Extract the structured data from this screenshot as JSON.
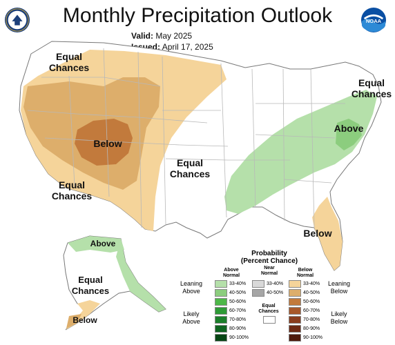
{
  "header": {
    "title": "Monthly Precipitation Outlook",
    "valid_label": "Valid:",
    "valid_value": "May 2025",
    "issued_label": "Issued:",
    "issued_value": "April 17, 2025",
    "left_logo": "commerce-seal-icon",
    "right_logo": "noaa-logo-icon"
  },
  "map_labels": {
    "ec_northwest": [
      "Equal",
      "Chances"
    ],
    "ec_northeast": [
      "Equal",
      "Chances"
    ],
    "ec_central": [
      "Equal",
      "Chances"
    ],
    "ec_southwest": [
      "Equal",
      "Chances"
    ],
    "ec_alaska": [
      "Equal",
      "Chances"
    ],
    "below_west": "Below",
    "above_east": "Above",
    "below_florida": "Below",
    "above_alaska": "Above",
    "below_alaska": "Below"
  },
  "legend": {
    "title_line1": "Probability",
    "title_line2": "(Percent Chance)",
    "col_above": [
      "Above",
      "Normal"
    ],
    "col_near": [
      "Near",
      "Normal"
    ],
    "col_below": [
      "Below",
      "Normal"
    ],
    "leaning_above": [
      "Leaning",
      "Above"
    ],
    "leaning_below": [
      "Leaning",
      "Below"
    ],
    "likely_above": [
      "Likely",
      "Above"
    ],
    "likely_below": [
      "Likely",
      "Below"
    ],
    "equal_chances": [
      "Equal",
      "Chances"
    ],
    "above_bins": [
      {
        "label": "33-40%",
        "color": "#b5e0aa"
      },
      {
        "label": "40-50%",
        "color": "#8ccd7e"
      },
      {
        "label": "50-60%",
        "color": "#4db848"
      },
      {
        "label": "60-70%",
        "color": "#2e9b36"
      },
      {
        "label": "70-80%",
        "color": "#1b7f2a"
      },
      {
        "label": "80-90%",
        "color": "#0e6420"
      },
      {
        "label": "90-100%",
        "color": "#064514"
      }
    ],
    "near_bins": [
      {
        "label": "33-40%",
        "color": "#d9d9d9"
      },
      {
        "label": "40-50%",
        "color": "#a6a6a6"
      }
    ],
    "below_bins": [
      {
        "label": "33-40%",
        "color": "#f5d49a"
      },
      {
        "label": "40-50%",
        "color": "#ddae6b"
      },
      {
        "label": "50-60%",
        "color": "#c27a3c"
      },
      {
        "label": "60-70%",
        "color": "#a8582a"
      },
      {
        "label": "70-80%",
        "color": "#8a3d1e"
      },
      {
        "label": "80-90%",
        "color": "#6d2a14"
      },
      {
        "label": "90-100%",
        "color": "#4e1a0c"
      }
    ]
  },
  "colors": {
    "land": "#ffffff",
    "state_lines": "#b8b8b8",
    "below_33_40": "#f5d49a",
    "below_40_50": "#ddae6b",
    "below_50_60": "#c27a3c",
    "above_33_40": "#b5e0aa",
    "above_40_50": "#8ccd7e"
  }
}
